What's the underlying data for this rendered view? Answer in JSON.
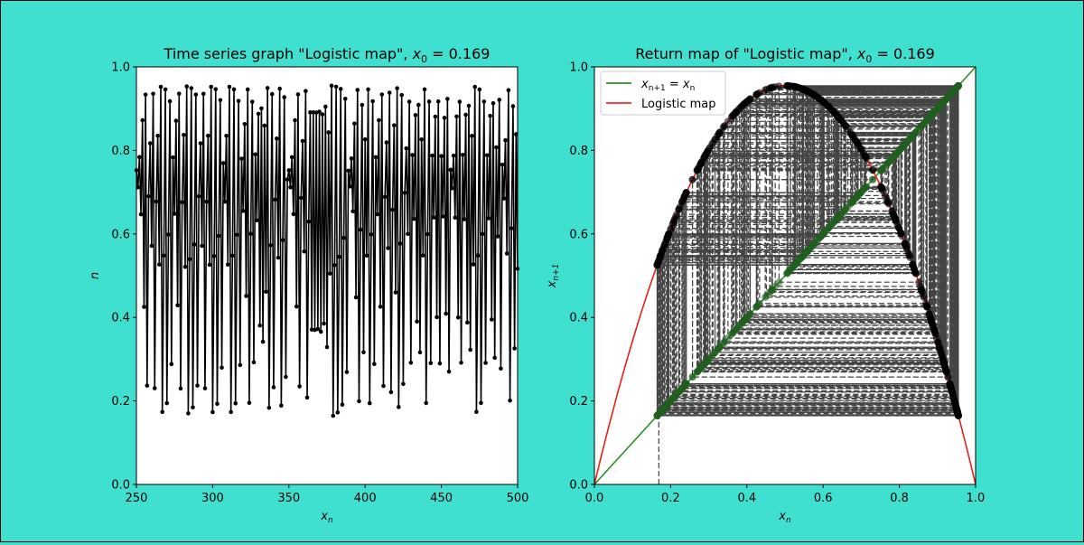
{
  "figure": {
    "background": "#40e0d0"
  },
  "chart_data": [
    {
      "type": "line",
      "title": "Time series graph \"Logistic map\", x0 = 0.169",
      "title_parts": {
        "text": "Time series graph \"Logistic map\", ",
        "var": "x",
        "sub": "0",
        "rest": " = 0.169"
      },
      "xlabel": "x_n",
      "ylabel": "n",
      "xlim": [
        250,
        500
      ],
      "ylim": [
        0.0,
        1.0
      ],
      "xticks": [
        "250",
        "300",
        "350",
        "400",
        "450",
        "500"
      ],
      "yticks": [
        "0.0",
        "0.2",
        "0.4",
        "0.6",
        "0.8",
        "1.0"
      ],
      "grid": false,
      "legend": "none",
      "series": [
        {
          "color": "#000000",
          "marker": "o",
          "generator": {
            "r": 3.82,
            "x0": 0.169,
            "n_start": 250,
            "n_end": 500
          }
        }
      ]
    },
    {
      "type": "line",
      "title": "Return map of \"Logistic map\", x0 = 0.169",
      "title_parts": {
        "text": "Return map of \"Logistic map\", ",
        "var": "x",
        "sub": "0",
        "rest": " = 0.169"
      },
      "xlabel": "x_n",
      "ylabel": "x_n+1",
      "xlim": [
        0.0,
        1.0
      ],
      "ylim": [
        0.0,
        1.0
      ],
      "xticks": [
        "0.0",
        "0.2",
        "0.4",
        "0.6",
        "0.8",
        "1.0"
      ],
      "yticks": [
        "0.0",
        "0.2",
        "0.4",
        "0.6",
        "0.8",
        "1.0"
      ],
      "grid": false,
      "legend": "top-left",
      "legend_entries": [
        {
          "label_var": "x",
          "label_sub": "n+1",
          "label_eq": " = ",
          "label_var2": "x",
          "label_sub2": "n",
          "color": "#008000"
        },
        {
          "label": "Logistic map",
          "color": "#ff0000"
        }
      ],
      "series": [
        {
          "name": "Logistic map",
          "color": "#e8201a",
          "function": "r*x*(1-x)",
          "r": 3.82
        },
        {
          "name": "identity",
          "color": "#228b22",
          "function": "x"
        },
        {
          "name": "cobweb",
          "color": "#444444",
          "dashed": true
        },
        {
          "name": "orbit points",
          "color": "#000000"
        }
      ]
    }
  ]
}
